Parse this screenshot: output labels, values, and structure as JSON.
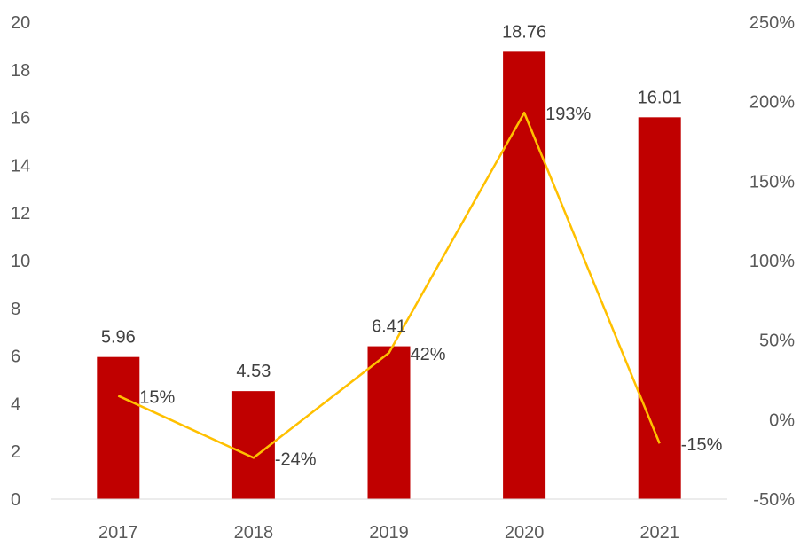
{
  "chart_data": {
    "type": "bar",
    "categories": [
      "2017",
      "2018",
      "2019",
      "2020",
      "2021"
    ],
    "series": [
      {
        "type": "bar",
        "axis": "left",
        "values": [
          5.96,
          4.53,
          6.41,
          18.76,
          16.01
        ],
        "labels": [
          "5.96",
          "4.53",
          "6.41",
          "18.76",
          "16.01"
        ],
        "color": "#c00000"
      },
      {
        "type": "line",
        "axis": "right",
        "values": [
          15,
          -24,
          42,
          193,
          -15
        ],
        "labels": [
          "15%",
          "-24%",
          "42%",
          "193%",
          "-15%"
        ],
        "color": "#ffc000"
      }
    ],
    "y_left": {
      "range": [
        0,
        20
      ],
      "ticks": [
        0,
        2,
        4,
        6,
        8,
        10,
        12,
        14,
        16,
        18,
        20
      ],
      "tick_labels": [
        "0",
        "2",
        "4",
        "6",
        "8",
        "10",
        "12",
        "14",
        "16",
        "18",
        "20"
      ]
    },
    "y_right": {
      "range": [
        -50,
        250
      ],
      "ticks": [
        -50,
        0,
        50,
        100,
        150,
        200,
        250
      ],
      "tick_labels": [
        "-50%",
        "0%",
        "50%",
        "100%",
        "150%",
        "200%",
        "250%"
      ]
    },
    "grid": false,
    "legend": "none",
    "title": "",
    "xlabel": "",
    "ylabel": ""
  }
}
